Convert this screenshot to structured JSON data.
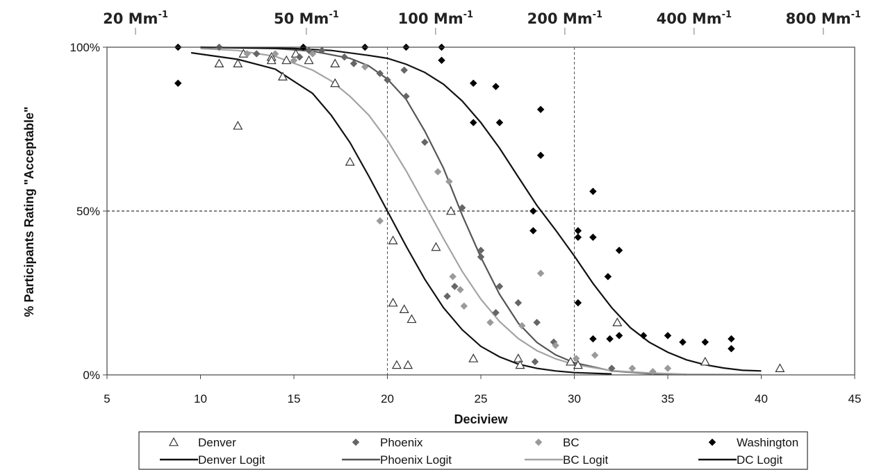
{
  "chart_data": {
    "type": "scatter",
    "xlabel": "Deciview",
    "ylabel": "% Participants Rating \"Acceptable\"",
    "xlim": [
      5,
      45
    ],
    "ylim": [
      0,
      100
    ],
    "x_ticks": [
      5,
      10,
      15,
      20,
      25,
      30,
      35,
      40,
      45
    ],
    "y_ticks": [
      {
        "value": 0,
        "label": "0%"
      },
      {
        "value": 50,
        "label": "50%"
      },
      {
        "value": 100,
        "label": "100%"
      }
    ],
    "top_axis": {
      "unit": "Mm",
      "unit_superscript": "-1",
      "ticks": [
        {
          "value": 20,
          "label": "20 Mm"
        },
        {
          "value": 50,
          "label": "50 Mm"
        },
        {
          "value": 100,
          "label": "100 Mm"
        },
        {
          "value": 200,
          "label": "200 Mm"
        },
        {
          "value": 400,
          "label": "400 Mm"
        },
        {
          "value": 800,
          "label": "800 Mm"
        }
      ]
    },
    "reference_lines": [
      {
        "axis": "x",
        "value": 20
      },
      {
        "axis": "x",
        "value": 30
      },
      {
        "axis": "y",
        "value": 50
      }
    ],
    "series": [
      {
        "name": "Denver",
        "kind": "points",
        "marker": "triangle-open",
        "color": "#333333",
        "points": [
          [
            11.0,
            95
          ],
          [
            12.0,
            95
          ],
          [
            12.0,
            76
          ],
          [
            12.3,
            98
          ],
          [
            13.8,
            97
          ],
          [
            13.8,
            96
          ],
          [
            14.4,
            91
          ],
          [
            14.6,
            96
          ],
          [
            15.1,
            98
          ],
          [
            15.8,
            96
          ],
          [
            17.2,
            95
          ],
          [
            17.2,
            89
          ],
          [
            18.0,
            65
          ],
          [
            20.3,
            41
          ],
          [
            20.3,
            22
          ],
          [
            20.5,
            3
          ],
          [
            20.9,
            20
          ],
          [
            21.1,
            3
          ],
          [
            21.3,
            17
          ],
          [
            22.6,
            39
          ],
          [
            23.4,
            50
          ],
          [
            24.6,
            5
          ],
          [
            27.0,
            5
          ],
          [
            27.1,
            3
          ],
          [
            29.8,
            4
          ],
          [
            30.2,
            3
          ],
          [
            32.3,
            16
          ],
          [
            37.0,
            4
          ],
          [
            41.0,
            2
          ]
        ]
      },
      {
        "name": "Phoenix",
        "kind": "points",
        "marker": "diamond",
        "color": "#666666",
        "points": [
          [
            11.0,
            100
          ],
          [
            13.0,
            98
          ],
          [
            15.3,
            97
          ],
          [
            15.8,
            99
          ],
          [
            16.5,
            99
          ],
          [
            17.7,
            97
          ],
          [
            18.2,
            95
          ],
          [
            19.6,
            92
          ],
          [
            20.0,
            90
          ],
          [
            20.9,
            93
          ],
          [
            21.0,
            85
          ],
          [
            22.0,
            71
          ],
          [
            23.2,
            24
          ],
          [
            23.6,
            27
          ],
          [
            24.0,
            51
          ],
          [
            25.0,
            38
          ],
          [
            25.0,
            36
          ],
          [
            25.8,
            19
          ],
          [
            26.0,
            27
          ],
          [
            27.0,
            22
          ],
          [
            27.9,
            4
          ],
          [
            28.0,
            16
          ],
          [
            28.9,
            10
          ],
          [
            32.0,
            2
          ]
        ]
      },
      {
        "name": "BC",
        "kind": "points",
        "marker": "diamond",
        "color": "#9a9a9a",
        "points": [
          [
            12.5,
            98
          ],
          [
            14.0,
            98
          ],
          [
            15.0,
            96
          ],
          [
            16.0,
            98
          ],
          [
            18.8,
            94
          ],
          [
            19.6,
            47
          ],
          [
            22.7,
            62
          ],
          [
            23.3,
            59
          ],
          [
            23.5,
            30
          ],
          [
            23.9,
            26
          ],
          [
            24.1,
            21
          ],
          [
            25.5,
            16
          ],
          [
            27.2,
            15
          ],
          [
            28.2,
            31
          ],
          [
            29.0,
            9
          ],
          [
            30.1,
            5
          ],
          [
            31.1,
            6
          ],
          [
            33.1,
            2
          ],
          [
            34.2,
            1
          ],
          [
            35.0,
            2
          ]
        ]
      },
      {
        "name": "Washington",
        "kind": "points",
        "marker": "diamond",
        "color": "#000000",
        "points": [
          [
            8.8,
            100
          ],
          [
            8.8,
            89
          ],
          [
            15.5,
            100
          ],
          [
            18.8,
            100
          ],
          [
            21.0,
            100
          ],
          [
            22.9,
            100
          ],
          [
            22.9,
            96
          ],
          [
            24.6,
            89
          ],
          [
            24.6,
            77
          ],
          [
            25.8,
            88
          ],
          [
            26.0,
            77
          ],
          [
            28.2,
            81
          ],
          [
            28.2,
            67
          ],
          [
            27.8,
            50
          ],
          [
            27.8,
            44
          ],
          [
            30.2,
            44
          ],
          [
            30.2,
            42
          ],
          [
            30.2,
            22
          ],
          [
            31.0,
            42
          ],
          [
            31.0,
            56
          ],
          [
            31.0,
            11
          ],
          [
            31.8,
            30
          ],
          [
            31.9,
            11
          ],
          [
            32.4,
            38
          ],
          [
            32.4,
            12
          ],
          [
            33.7,
            12
          ],
          [
            35.0,
            12
          ],
          [
            35.8,
            10
          ],
          [
            37.0,
            10
          ],
          [
            38.4,
            11
          ],
          [
            38.4,
            8
          ]
        ]
      },
      {
        "name": "Denver Logit",
        "kind": "curve",
        "color": "#111111",
        "width": 2.2,
        "points": [
          [
            9.5,
            98.3
          ],
          [
            12,
            96.3
          ],
          [
            14,
            93.3
          ],
          [
            16,
            85.9
          ],
          [
            17,
            79.2
          ],
          [
            18,
            70.9
          ],
          [
            19,
            60.7
          ],
          [
            20,
            50
          ],
          [
            21,
            39.3
          ],
          [
            22,
            29.2
          ],
          [
            23,
            20.5
          ],
          [
            24,
            13.8
          ],
          [
            25,
            8.7
          ],
          [
            26,
            5.5
          ],
          [
            27,
            3.3
          ],
          [
            28,
            2.0
          ],
          [
            29,
            1.2
          ],
          [
            30,
            0.7
          ],
          [
            32,
            0.3
          ]
        ]
      },
      {
        "name": "Phoenix Logit",
        "kind": "curve",
        "color": "#555555",
        "width": 2.2,
        "points": [
          [
            10,
            100
          ],
          [
            14,
            99.6
          ],
          [
            16,
            98.8
          ],
          [
            18,
            96.6
          ],
          [
            19,
            94.3
          ],
          [
            20,
            90.3
          ],
          [
            21,
            84.1
          ],
          [
            22,
            74.4
          ],
          [
            23,
            63.1
          ],
          [
            24,
            48.8
          ],
          [
            25,
            35.9
          ],
          [
            26,
            24.6
          ],
          [
            27,
            15.8
          ],
          [
            28,
            9.9
          ],
          [
            29,
            6.1
          ],
          [
            30,
            3.7
          ],
          [
            32,
            1.2
          ],
          [
            34,
            0.4
          ],
          [
            36,
            0.1
          ]
        ]
      },
      {
        "name": "BC Logit",
        "kind": "curve",
        "color": "#a3a3a3",
        "width": 2.2,
        "points": [
          [
            10,
            99.6
          ],
          [
            12,
            99.0
          ],
          [
            14,
            97.2
          ],
          [
            16,
            93.0
          ],
          [
            17,
            89.7
          ],
          [
            18,
            85.0
          ],
          [
            19,
            79.3
          ],
          [
            20,
            71.6
          ],
          [
            21,
            62.3
          ],
          [
            22,
            52.0
          ],
          [
            23,
            41.6
          ],
          [
            24,
            31.6
          ],
          [
            25,
            23.1
          ],
          [
            26,
            16.3
          ],
          [
            27,
            11.1
          ],
          [
            28,
            7.4
          ],
          [
            29,
            4.9
          ],
          [
            30,
            3.2
          ],
          [
            32,
            1.3
          ],
          [
            34,
            0.6
          ],
          [
            36,
            0.2
          ],
          [
            40,
            0.1
          ]
        ]
      },
      {
        "name": "DC Logit",
        "kind": "curve",
        "color": "#111111",
        "width": 2.2,
        "points": [
          [
            10,
            100
          ],
          [
            15,
            99.6
          ],
          [
            17,
            99.0
          ],
          [
            19,
            97.5
          ],
          [
            20,
            96.6
          ],
          [
            21,
            94.8
          ],
          [
            22,
            92.3
          ],
          [
            23,
            88.7
          ],
          [
            24,
            83.6
          ],
          [
            25,
            77.0
          ],
          [
            26,
            69.2
          ],
          [
            27,
            60.4
          ],
          [
            28,
            51.7
          ],
          [
            29,
            44.2
          ],
          [
            30,
            36.3
          ],
          [
            31,
            27.9
          ],
          [
            32,
            20.5
          ],
          [
            33,
            14.4
          ],
          [
            34,
            10.0
          ],
          [
            35,
            6.9
          ],
          [
            36,
            4.6
          ],
          [
            37,
            3.1
          ],
          [
            38,
            2.1
          ],
          [
            39,
            1.4
          ],
          [
            40,
            1.2
          ]
        ]
      }
    ],
    "legend": {
      "placement": "bottom",
      "rows": [
        [
          {
            "series": 0,
            "label": "Denver"
          },
          {
            "series": 1,
            "label": "Phoenix"
          },
          {
            "series": 2,
            "label": "BC"
          },
          {
            "series": 3,
            "label": "Washington"
          }
        ],
        [
          {
            "series": 4,
            "label": "Denver Logit"
          },
          {
            "series": 5,
            "label": "Phoenix Logit"
          },
          {
            "series": 6,
            "label": "BC Logit"
          },
          {
            "series": 7,
            "label": "DC Logit"
          }
        ]
      ]
    }
  }
}
